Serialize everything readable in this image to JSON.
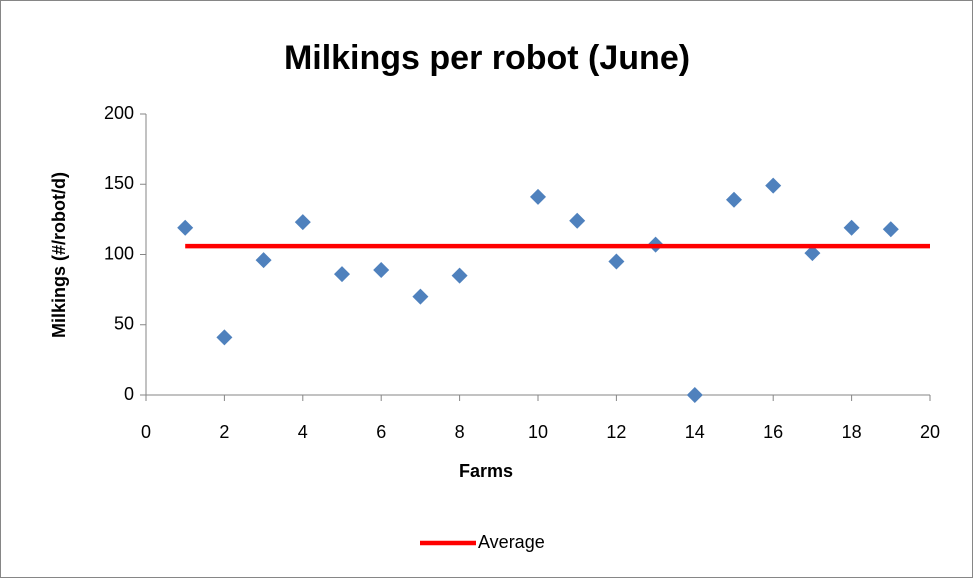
{
  "chart_data": {
    "type": "scatter",
    "title": "Milkings per robot (June)",
    "x_label": "Farms",
    "y_label": "Milkings (#/robot/d)",
    "xlim": [
      0,
      20
    ],
    "xticks": [
      0,
      2,
      4,
      6,
      8,
      10,
      12,
      14,
      16,
      18,
      20
    ],
    "ylim": [
      0,
      200
    ],
    "yticks": [
      0,
      50,
      100,
      150,
      200
    ],
    "grid": false,
    "legend": "bottom",
    "series": [
      {
        "x": [
          1,
          2,
          3,
          4,
          5,
          6,
          7,
          8,
          10,
          11,
          12,
          13,
          14,
          15,
          16,
          17,
          18,
          19
        ],
        "values": [
          119,
          41,
          96,
          123,
          86,
          89,
          70,
          85,
          141,
          124,
          95,
          107,
          0,
          139,
          149,
          101,
          119,
          118
        ],
        "color": "#4f81bd",
        "mode": "markers"
      },
      {
        "name": "Average",
        "x": [
          1,
          20
        ],
        "values": [
          106,
          106
        ],
        "color": "#ff0000",
        "mode": "line"
      }
    ]
  }
}
